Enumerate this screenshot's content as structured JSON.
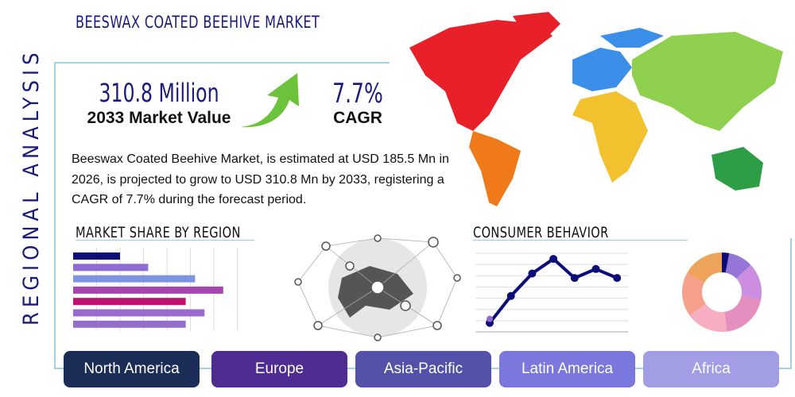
{
  "header": {
    "title": "BEESWAX COATED BEEHIVE MARKET",
    "side_title": "REGIONAL ANALYSIS"
  },
  "kpis": {
    "market_value": "310.8 Million",
    "market_value_label": "2033 Market Value",
    "cagr": "7.7%",
    "cagr_label": "CAGR",
    "arrow_icon": "green-up-arrow-icon"
  },
  "description": "Beeswax Coated Beehive Market, is estimated at USD 185.5 Mn in 2026, is projected to grow to USD 310.8 Mn by 2033, registering a CAGR of 7.7% during the forecast period.",
  "sections": {
    "market_share": "MARKET SHARE BY REGION",
    "consumer": "CONSUMER BEHAVIOR"
  },
  "regions": [
    {
      "label": "North America",
      "color": "#1b2d57"
    },
    {
      "label": "Europe",
      "color": "#4f2c91"
    },
    {
      "label": "Asia-Pacific",
      "color": "#5451a8"
    },
    {
      "label": "Latin America",
      "color": "#7a78dd"
    },
    {
      "label": "Africa",
      "color": "#a19ee6"
    }
  ],
  "chart_data": [
    {
      "type": "bar",
      "orientation": "horizontal",
      "grid": true,
      "values": [
        2.0,
        3.2,
        5.2,
        6.4,
        4.8,
        5.6,
        4.8
      ],
      "colors": [
        "#0d0d7a",
        "#8e6bd0",
        "#7f94e0",
        "#a545b0",
        "#c2126f",
        "#9a6ad0",
        "#946ccc"
      ],
      "xlim": [
        0,
        7
      ]
    },
    {
      "type": "line",
      "grid": true,
      "values": [
        0.8,
        3.2,
        5.2,
        6.5,
        4.8,
        5.6,
        4.8
      ],
      "color": "#0d0d7a",
      "ylim": [
        0,
        7
      ]
    },
    {
      "type": "pie",
      "donut": true,
      "values": [
        3,
        10,
        15,
        20,
        17,
        18,
        17
      ],
      "colors": [
        "#0d0d7a",
        "#9575d8",
        "#cc8ee0",
        "#e48fbf",
        "#f7aec3",
        "#f4a08a",
        "#eea35a"
      ]
    }
  ]
}
